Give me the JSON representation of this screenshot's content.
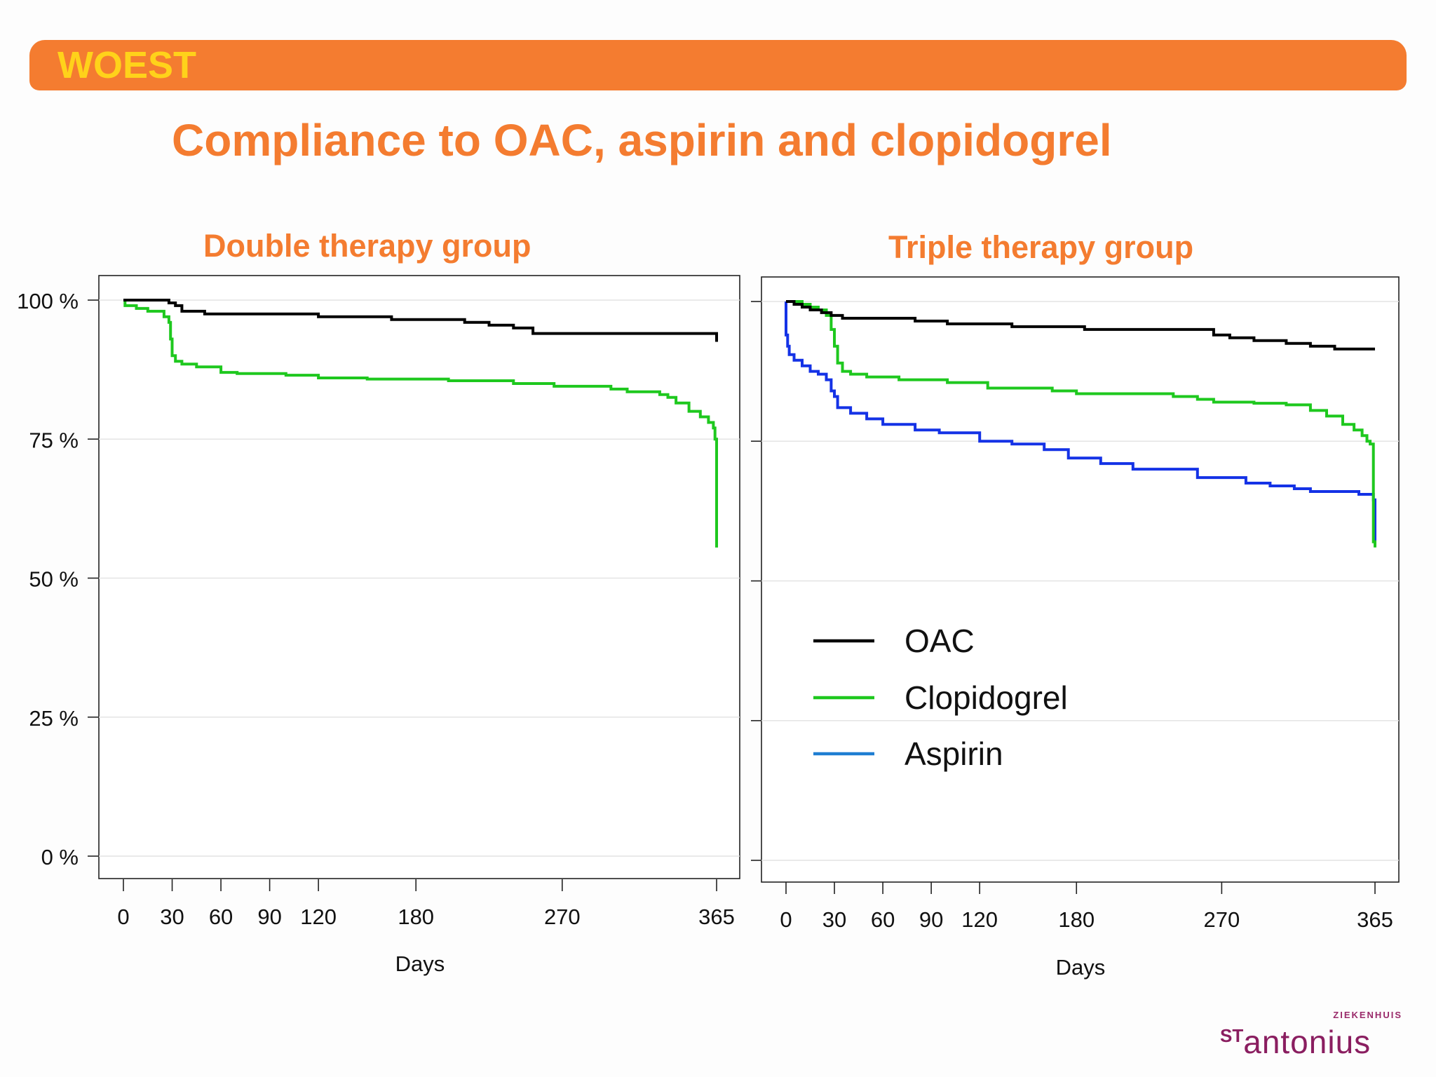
{
  "header": {
    "banner_label": "WOEST",
    "title": "Compliance to OAC, aspirin and clopidogrel"
  },
  "logo": {
    "small": "ZIEKENHUIS",
    "st": "ST",
    "name": "antonius"
  },
  "colors": {
    "orange": "#f47c30",
    "yellow": "#ffd21a",
    "oac": "#000000",
    "clopidogrel": "#1ec81e",
    "aspirin": "#1432e6",
    "legend_aspirin": "#1e7ed2"
  },
  "chart_data": [
    {
      "type": "line",
      "title": "Double therapy group",
      "xlabel": "Days",
      "ylabel": "",
      "xlim": [
        0,
        365
      ],
      "ylim": [
        0,
        100
      ],
      "xticks": [
        0,
        30,
        60,
        90,
        120,
        180,
        270,
        365
      ],
      "ytick_values": [
        0,
        25,
        50,
        75,
        100
      ],
      "ytick_labels": [
        "0 %",
        "25 %",
        "50 %",
        "75 %",
        "100 %"
      ],
      "grid": true,
      "series": [
        {
          "name": "OAC",
          "color": "#000000",
          "x": [
            0,
            24,
            28,
            32,
            36,
            50,
            105,
            120,
            140,
            165,
            210,
            225,
            240,
            252,
            365
          ],
          "y": [
            100,
            100,
            99.5,
            99,
            98,
            97.5,
            97.5,
            97,
            97,
            96.5,
            96,
            95.5,
            95,
            94,
            92.5
          ]
        },
        {
          "name": "Clopidogrel",
          "color": "#1ec81e",
          "x": [
            0,
            1,
            8,
            15,
            25,
            28,
            29,
            30,
            32,
            36,
            45,
            60,
            70,
            100,
            120,
            150,
            200,
            240,
            265,
            300,
            310,
            330,
            335,
            340,
            348,
            355,
            360,
            363,
            364,
            365,
            365
          ],
          "y": [
            100,
            99,
            98.5,
            98,
            97,
            96,
            93,
            90,
            89,
            88.5,
            88,
            87,
            86.8,
            86.5,
            86,
            85.8,
            85.5,
            85,
            84.5,
            84,
            83.5,
            83,
            82.5,
            81.5,
            80,
            79,
            78,
            77,
            75,
            74.5,
            55.5
          ]
        }
      ]
    },
    {
      "type": "line",
      "title": "Triple therapy group",
      "xlabel": "Days",
      "ylabel": "",
      "xlim": [
        0,
        365
      ],
      "ylim": [
        0,
        100
      ],
      "xticks": [
        0,
        30,
        60,
        90,
        120,
        180,
        270,
        365
      ],
      "ytick_values": [
        0,
        25,
        50,
        75,
        100
      ],
      "grid": true,
      "legend": {
        "position": "middle-left",
        "entries": [
          {
            "label": "OAC",
            "color": "#000000"
          },
          {
            "label": "Clopidogrel",
            "color": "#1ec81e"
          },
          {
            "label": "Aspirin",
            "color": "#1e7ed2"
          }
        ]
      },
      "series": [
        {
          "name": "OAC",
          "color": "#000000",
          "x": [
            0,
            5,
            10,
            15,
            22,
            28,
            35,
            40,
            80,
            100,
            140,
            170,
            185,
            250,
            265,
            275,
            290,
            310,
            325,
            340,
            365
          ],
          "y": [
            100,
            99.5,
            99,
            98.5,
            98,
            97.5,
            97,
            97,
            96.5,
            96,
            95.5,
            95.5,
            95,
            95,
            94,
            93.5,
            93,
            92.5,
            92,
            91.5,
            91.5
          ]
        },
        {
          "name": "Clopidogrel",
          "color": "#1ec81e",
          "x": [
            0,
            5,
            10,
            15,
            20,
            25,
            28,
            30,
            32,
            35,
            40,
            50,
            70,
            100,
            125,
            165,
            180,
            240,
            255,
            265,
            290,
            310,
            325,
            335,
            345,
            352,
            357,
            360,
            362,
            364,
            364,
            365
          ],
          "y": [
            100,
            100,
            99.5,
            99,
            98.5,
            97.5,
            95,
            92,
            89,
            87.5,
            87,
            86.5,
            86,
            85.5,
            84.5,
            84,
            83.5,
            83,
            82.5,
            82,
            81.8,
            81.5,
            80.5,
            79.5,
            78,
            77,
            76,
            75,
            74.5,
            73,
            57,
            56
          ]
        },
        {
          "name": "Aspirin",
          "color": "#1432e6",
          "x": [
            0,
            0,
            1,
            2,
            5,
            10,
            15,
            20,
            25,
            28,
            30,
            32,
            40,
            50,
            60,
            80,
            95,
            120,
            140,
            160,
            175,
            195,
            215,
            255,
            285,
            300,
            315,
            325,
            355,
            364,
            365,
            365
          ],
          "y": [
            100,
            94,
            92,
            90.5,
            89.5,
            88.5,
            87.5,
            87,
            86,
            84,
            83,
            81,
            80,
            79,
            78,
            77,
            76.5,
            75,
            74.5,
            73.5,
            72,
            71,
            70,
            68.5,
            67.5,
            67,
            66.5,
            66,
            65.5,
            64.5,
            64.5,
            56.5
          ]
        }
      ]
    }
  ]
}
